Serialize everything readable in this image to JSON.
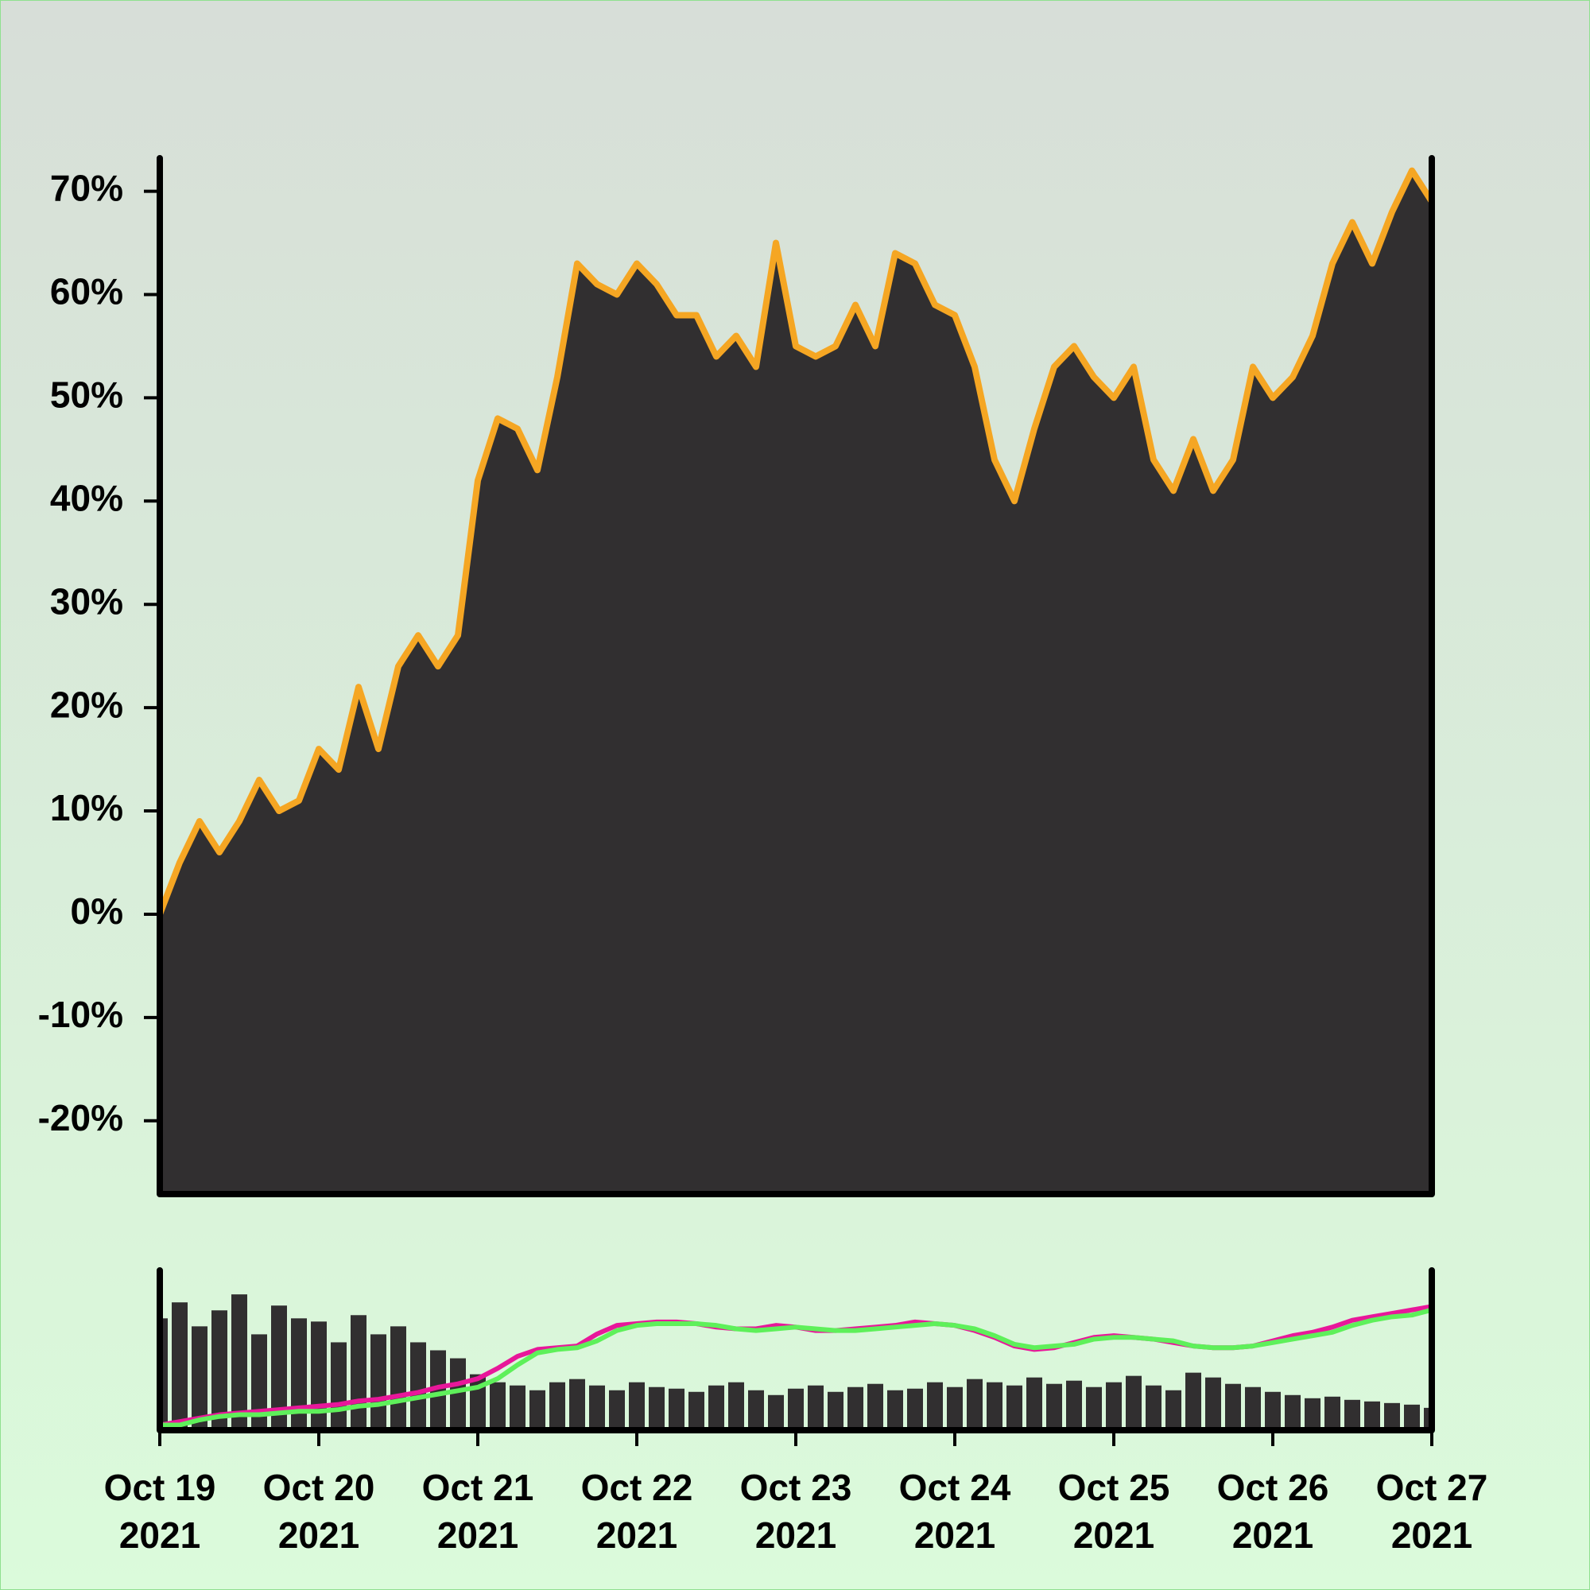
{
  "chart_data": [
    {
      "type": "area",
      "x": [
        0,
        0.125,
        0.25,
        0.375,
        0.5,
        0.625,
        0.75,
        0.875,
        1,
        1.125,
        1.25,
        1.375,
        1.5,
        1.625,
        1.75,
        1.875,
        2,
        2.125,
        2.25,
        2.375,
        2.5,
        2.625,
        2.75,
        2.875,
        3,
        3.125,
        3.25,
        3.375,
        3.5,
        3.625,
        3.75,
        3.875,
        4,
        4.125,
        4.25,
        4.375,
        4.5,
        4.625,
        4.75,
        4.875,
        5,
        5.125,
        5.25,
        5.375,
        5.5,
        5.625,
        5.75,
        5.875,
        6,
        6.125,
        6.25,
        6.375,
        6.5,
        6.625,
        6.75,
        6.875,
        7,
        7.125,
        7.25,
        7.375,
        7.5,
        7.625,
        7.75,
        7.875,
        8
      ],
      "values": [
        0,
        5,
        9,
        6,
        9,
        13,
        10,
        11,
        16,
        14,
        22,
        16,
        24,
        27,
        24,
        27,
        42,
        48,
        47,
        43,
        52,
        63,
        61,
        60,
        63,
        61,
        58,
        58,
        54,
        56,
        53,
        65,
        55,
        54,
        55,
        59,
        55,
        64,
        63,
        59,
        58,
        53,
        44,
        40,
        47,
        53,
        55,
        52,
        50,
        53,
        44,
        41,
        46,
        41,
        44,
        53,
        50,
        52,
        56,
        63,
        67,
        63,
        68,
        72,
        69
      ],
      "color": "#f5a623",
      "fill": "#312f30",
      "xlim": [
        0,
        8
      ],
      "ylim": [
        -27.1,
        73.2
      ],
      "yticks": [
        {
          "value": -20,
          "label": "-20%"
        },
        {
          "value": -10,
          "label": "-10%"
        },
        {
          "value": 0,
          "label": "0%"
        },
        {
          "value": 10,
          "label": "10%"
        },
        {
          "value": 20,
          "label": "20%"
        },
        {
          "value": 30,
          "label": "30%"
        },
        {
          "value": 40,
          "label": "40%"
        },
        {
          "value": 50,
          "label": "50%"
        },
        {
          "value": 60,
          "label": "60%"
        },
        {
          "value": 70,
          "label": "70%"
        }
      ]
    },
    {
      "type": "bar",
      "x": [
        0,
        0.125,
        0.25,
        0.375,
        0.5,
        0.625,
        0.75,
        0.875,
        1,
        1.125,
        1.25,
        1.375,
        1.5,
        1.625,
        1.75,
        1.875,
        2,
        2.125,
        2.25,
        2.375,
        2.5,
        2.625,
        2.75,
        2.875,
        3,
        3.125,
        3.25,
        3.375,
        3.5,
        3.625,
        3.75,
        3.875,
        4,
        4.125,
        4.25,
        4.375,
        4.5,
        4.625,
        4.75,
        4.875,
        5,
        5.125,
        5.25,
        5.375,
        5.5,
        5.625,
        5.75,
        5.875,
        6,
        6.125,
        6.25,
        6.375,
        6.5,
        6.625,
        6.75,
        6.875,
        7,
        7.125,
        7.25,
        7.375,
        7.5,
        7.625,
        7.75,
        7.875,
        8
      ],
      "xlim": [
        0,
        8
      ],
      "xticks": [
        {
          "value": 0,
          "label": "Oct 19\n2021"
        },
        {
          "value": 1,
          "label": "Oct 20\n2021"
        },
        {
          "value": 2,
          "label": "Oct 21\n2021"
        },
        {
          "value": 3,
          "label": "Oct 22\n2021"
        },
        {
          "value": 4,
          "label": "Oct 23\n2021"
        },
        {
          "value": 5,
          "label": "Oct 24\n2021"
        },
        {
          "value": 6,
          "label": "Oct 25\n2021"
        },
        {
          "value": 7,
          "label": "Oct 26\n2021"
        },
        {
          "value": 8,
          "label": "Oct 27\n2021"
        }
      ],
      "ylim": [
        0,
        100
      ],
      "y2lim": [
        -3,
        90
      ],
      "series": [
        {
          "color": "#312f30",
          "values": [
            70,
            80,
            65,
            75,
            85,
            60,
            78,
            70,
            68,
            55,
            72,
            60,
            65,
            55,
            50,
            45,
            35,
            30,
            28,
            25,
            30,
            32,
            28,
            25,
            30,
            27,
            26,
            24,
            28,
            30,
            25,
            22,
            26,
            28,
            24,
            27,
            29,
            25,
            26,
            30,
            27,
            32,
            30,
            28,
            33,
            29,
            31,
            27,
            30,
            34,
            28,
            25,
            36,
            33,
            29,
            27,
            24,
            22,
            20,
            21,
            19,
            18,
            17,
            16,
            14
          ]
        },
        {
          "color": "#e8179a",
          "axis": "y2",
          "values": [
            0,
            2,
            4,
            6,
            7,
            8,
            9,
            10,
            11,
            12,
            14,
            15,
            17,
            19,
            22,
            24,
            27,
            33,
            40,
            44,
            45,
            46,
            53,
            58,
            59,
            60,
            60,
            59,
            57,
            56,
            56,
            58,
            57,
            55,
            55,
            56,
            57,
            58,
            60,
            59,
            58,
            55,
            51,
            46,
            44,
            45,
            48,
            51,
            52,
            51,
            50,
            48,
            46,
            45,
            45,
            46,
            49,
            52,
            54,
            57,
            61,
            63,
            65,
            67,
            69
          ]
        },
        {
          "color": "#5ef05a",
          "axis": "y2",
          "values": [
            0,
            0,
            3,
            5,
            6,
            6,
            7,
            8,
            8,
            9,
            11,
            12,
            14,
            16,
            18,
            20,
            22,
            27,
            35,
            42,
            44,
            45,
            49,
            55,
            58,
            59,
            59,
            59,
            58,
            56,
            55,
            56,
            57,
            56,
            55,
            55,
            56,
            57,
            58,
            59,
            58,
            56,
            52,
            47,
            45,
            46,
            47,
            50,
            51,
            51,
            50,
            49,
            46,
            45,
            45,
            46,
            48,
            50,
            52,
            54,
            58,
            61,
            63,
            64,
            67
          ]
        }
      ]
    }
  ]
}
